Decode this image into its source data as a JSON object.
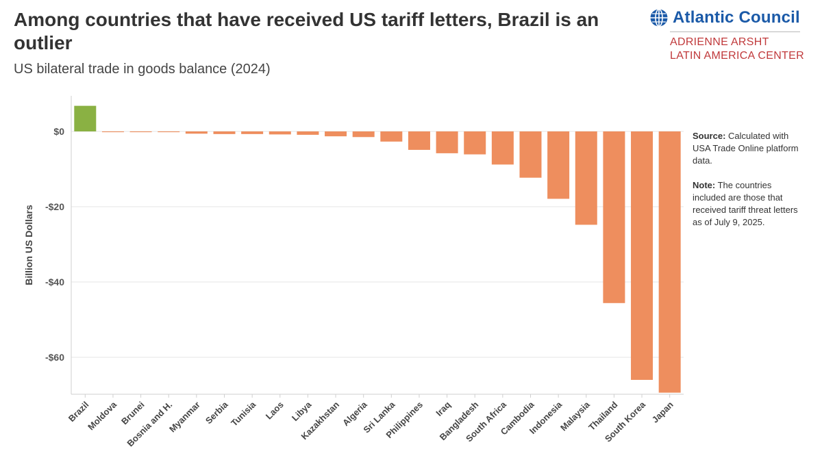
{
  "header": {
    "title": "Among countries that have received US tariff letters, Brazil is an outlier",
    "subtitle": "US bilateral trade in goods balance (2024)"
  },
  "logo": {
    "name": "Atlantic Council",
    "sub_line1": "ADRIENNE ARSHT",
    "sub_line2": "LATIN AMERICA CENTER",
    "icon": "globe-icon"
  },
  "notes": {
    "source_label": "Source:",
    "source_text": "Calculated with USA Trade Online platform data.",
    "note_label": "Note:",
    "note_text": "The countries included are those that received tariff threat letters as of July 9, 2025."
  },
  "chart_data": {
    "type": "bar",
    "title": "Among countries that have received US tariff letters, Brazil is an outlier",
    "subtitle": "US bilateral trade in goods balance (2024)",
    "xlabel": "",
    "ylabel": "Billion US Dollars",
    "ylim": [
      -70,
      8
    ],
    "yticks": [
      0,
      -20,
      -40,
      -60
    ],
    "ytick_labels": [
      "$0",
      "-$20",
      "-$40",
      "-$60"
    ],
    "grid": true,
    "categories": [
      "Brazil",
      "Moldova",
      "Brunei",
      "Bosnia and H.",
      "Myanmar",
      "Serbia",
      "Tunisia",
      "Laos",
      "Libya",
      "Kazakhstan",
      "Algeria",
      "Sri Lanka",
      "Philippines",
      "Iraq",
      "Bangladesh",
      "South Africa",
      "Cambodia",
      "Indonesia",
      "Malaysia",
      "Thailand",
      "South Korea",
      "Japan"
    ],
    "values": [
      6.8,
      -0.2,
      -0.2,
      -0.2,
      -0.6,
      -0.7,
      -0.7,
      -0.8,
      -0.9,
      -1.3,
      -1.5,
      -2.7,
      -4.9,
      -5.8,
      -6.1,
      -8.8,
      -12.3,
      -17.9,
      -24.8,
      -45.6,
      -66.0,
      -69.4
    ],
    "colors": {
      "positive": "#8ab143",
      "negative": "#ee8e5e"
    }
  }
}
